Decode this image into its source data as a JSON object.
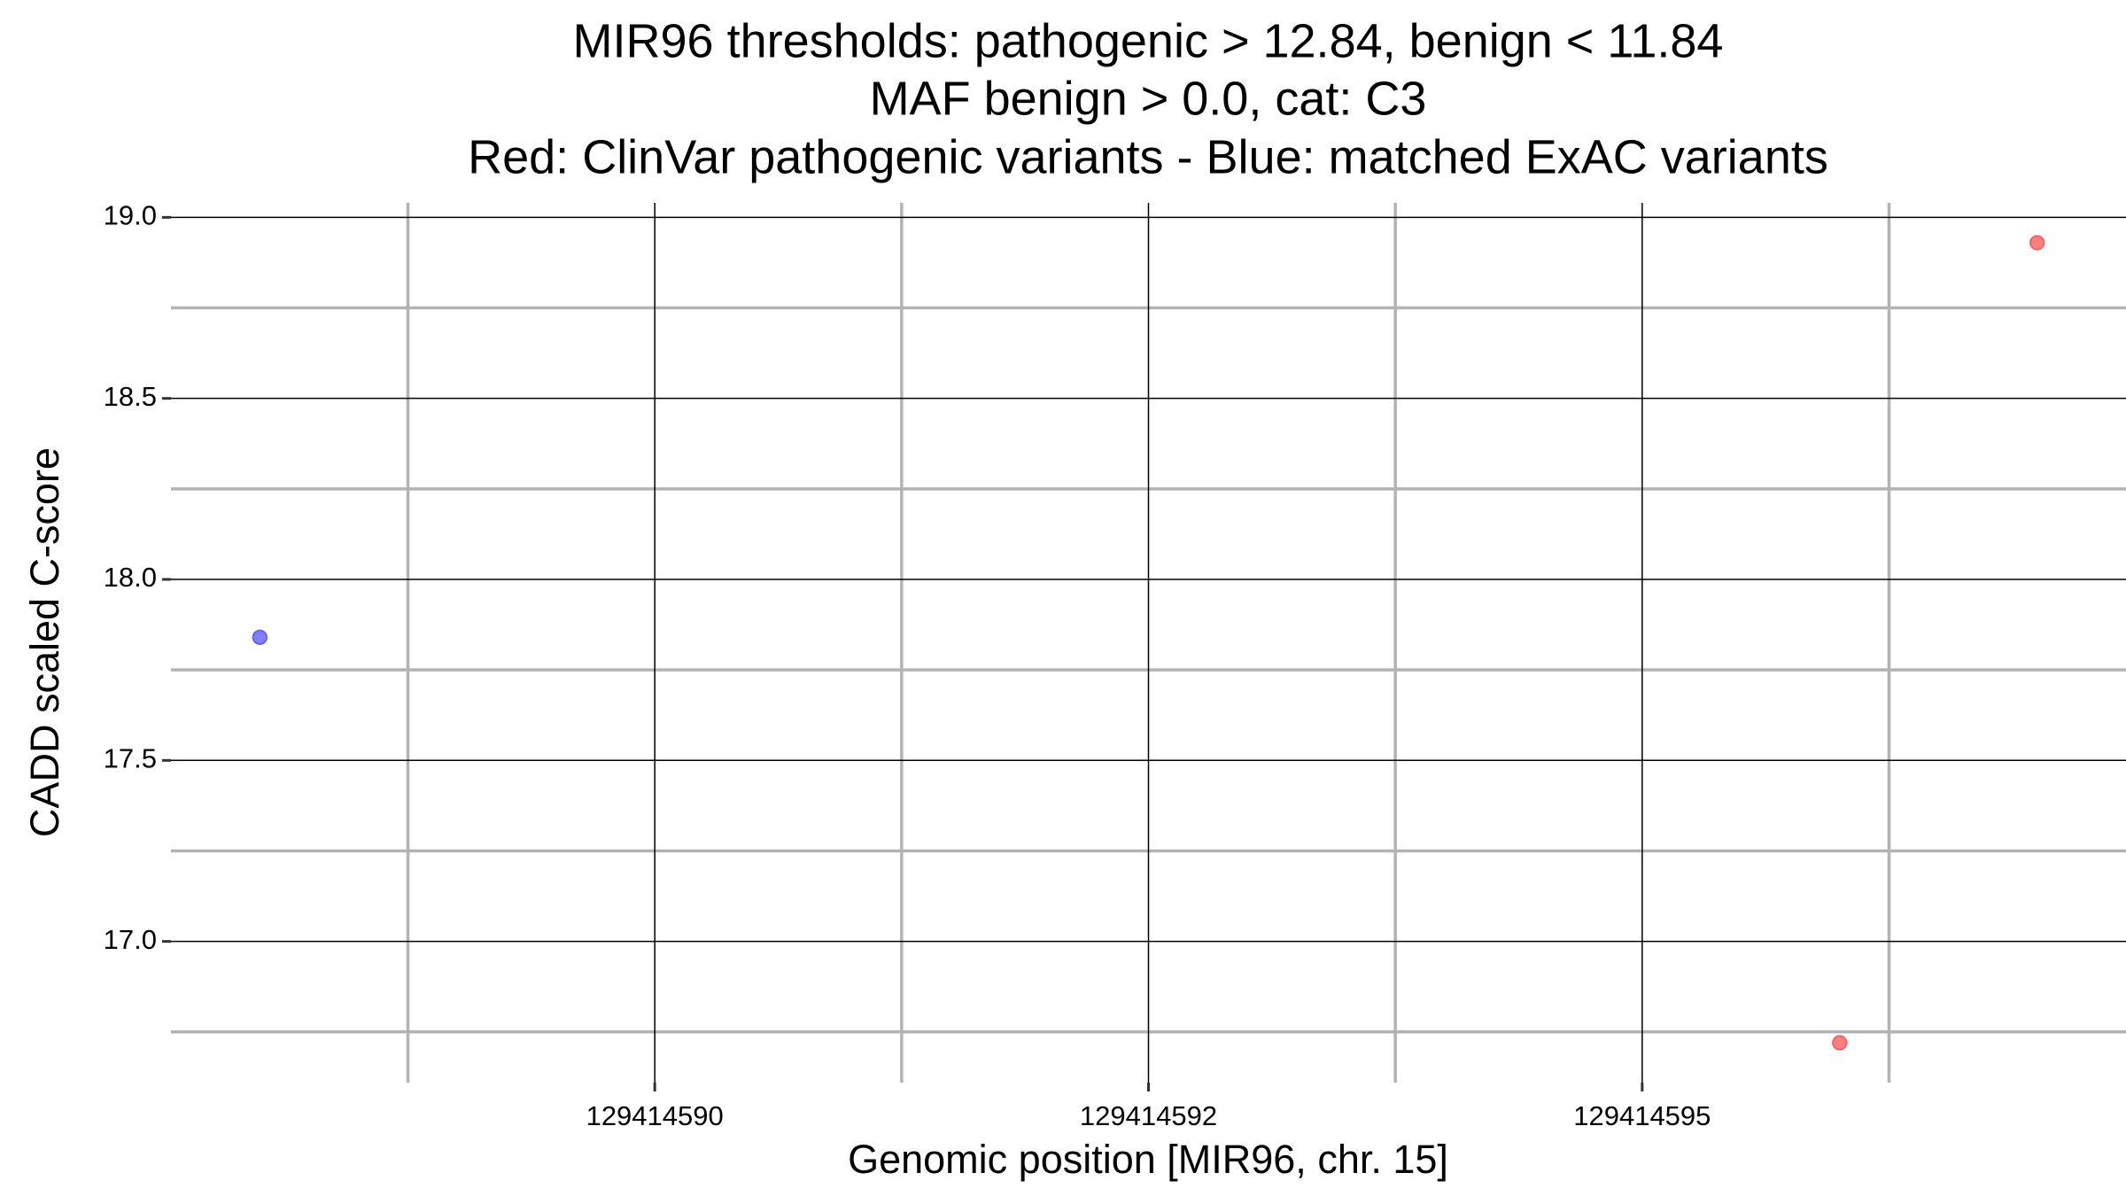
{
  "chart_data": {
    "type": "scatter",
    "title": [
      "MIR96 thresholds: pathogenic > 12.84, benign < 11.84",
      "MAF benign > 0.0, cat: C3",
      "Red: ClinVar pathogenic variants - Blue: matched ExAC variants"
    ],
    "x_label": "Genomic position [MIR96, chr. 15]",
    "y_label": "CADD scaled C-score",
    "series": [
      {
        "color": "#0000ff",
        "x": [
          129414588
        ],
        "values": [
          17.84
        ]
      },
      {
        "color": "#ff0000",
        "x": [
          129414596,
          129414597
        ],
        "values": [
          16.72,
          18.93
        ]
      }
    ],
    "xlim": [
      129414587.55,
      129414597.45
    ],
    "xticks": [
      129414590,
      {
        "value": 129414592.5,
        "label": "129414592"
      },
      129414595
    ],
    "xminorticks": [
      129414588.75,
      129414591.25,
      129414593.75,
      129414596.25
    ],
    "ylim": [
      16.61,
      19.04
    ],
    "yticks": [
      {
        "value": 17,
        "label": "17.0"
      },
      17.5,
      {
        "value": 18,
        "label": "18.0"
      },
      18.5,
      {
        "value": 19,
        "label": "19.0"
      }
    ],
    "yminorticks": [
      16.75,
      17.25,
      17.75,
      18.25,
      18.75
    ],
    "grid": true
  }
}
